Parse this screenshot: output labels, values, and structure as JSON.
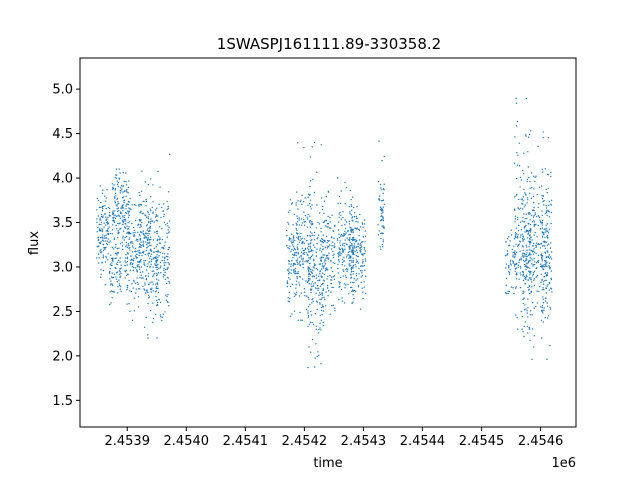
{
  "chart_data": {
    "type": "scatter",
    "title": "1SWASPJ161111.89-330358.2",
    "xlabel": "time",
    "ylabel": "flux",
    "x_offset_label": "1e6",
    "xlim": [
      2.45382,
      2.45466
    ],
    "ylim": [
      1.2,
      5.35
    ],
    "x_ticks": [
      2.4539,
      2.454,
      2.4541,
      2.4542,
      2.4543,
      2.4544,
      2.4545,
      2.4546
    ],
    "x_tick_labels": [
      "2.4539",
      "2.4540",
      "2.4541",
      "2.4542",
      "2.4543",
      "2.4544",
      "2.4545",
      "2.4546"
    ],
    "y_ticks": [
      1.5,
      2.0,
      2.5,
      3.0,
      3.5,
      4.0,
      4.5,
      5.0
    ],
    "y_tick_labels": [
      "1.5",
      "2.0",
      "2.5",
      "3.0",
      "3.5",
      "4.0",
      "4.5",
      "5.0"
    ],
    "grid": false,
    "marker_color": "#1f77b4",
    "clusters": [
      {
        "t": 2.45386,
        "width": 1.2e-05,
        "center": 3.35,
        "spread": 0.22,
        "min": 2.8,
        "max": 3.95,
        "count": 140
      },
      {
        "t": 2.45388,
        "width": 1e-05,
        "center": 2.95,
        "spread": 0.18,
        "min": 2.5,
        "max": 3.4,
        "count": 70
      },
      {
        "t": 2.45389,
        "width": 1.5e-05,
        "center": 3.6,
        "spread": 0.22,
        "min": 3.1,
        "max": 4.1,
        "count": 180
      },
      {
        "t": 2.45391,
        "width": 1.4e-05,
        "center": 3.1,
        "spread": 0.25,
        "min": 2.4,
        "max": 3.7,
        "count": 160
      },
      {
        "t": 2.45393,
        "width": 1e-05,
        "center": 3.35,
        "spread": 0.3,
        "min": 2.6,
        "max": 4.3,
        "count": 110
      },
      {
        "t": 2.45394,
        "width": 1.2e-05,
        "center": 3.0,
        "spread": 0.3,
        "min": 2.2,
        "max": 4.0,
        "count": 120
      },
      {
        "t": 2.45396,
        "width": 1.2e-05,
        "center": 3.1,
        "spread": 0.35,
        "min": 2.0,
        "max": 4.3,
        "count": 140
      },
      {
        "t": 2.45418,
        "width": 1e-05,
        "center": 3.1,
        "spread": 0.25,
        "min": 2.4,
        "max": 3.8,
        "count": 110
      },
      {
        "t": 2.4542,
        "width": 1.4e-05,
        "center": 3.2,
        "spread": 0.32,
        "min": 2.4,
        "max": 4.4,
        "count": 160
      },
      {
        "t": 2.45422,
        "width": 1.4e-05,
        "center": 2.9,
        "spread": 0.4,
        "min": 1.6,
        "max": 4.8,
        "count": 190
      },
      {
        "t": 2.45424,
        "width": 1.2e-05,
        "center": 3.05,
        "spread": 0.28,
        "min": 2.4,
        "max": 4.0,
        "count": 130
      },
      {
        "t": 2.45427,
        "width": 1.4e-05,
        "center": 3.2,
        "spread": 0.28,
        "min": 2.4,
        "max": 4.0,
        "count": 170
      },
      {
        "t": 2.45429,
        "width": 1.4e-05,
        "center": 3.15,
        "spread": 0.25,
        "min": 2.5,
        "max": 3.9,
        "count": 170
      },
      {
        "t": 2.45433,
        "width": 6e-06,
        "center": 3.6,
        "spread": 0.25,
        "min": 3.2,
        "max": 4.5,
        "count": 60
      },
      {
        "t": 2.45455,
        "width": 1e-05,
        "center": 3.05,
        "spread": 0.2,
        "min": 2.7,
        "max": 3.5,
        "count": 70
      },
      {
        "t": 2.45457,
        "width": 1.4e-05,
        "center": 3.3,
        "spread": 0.4,
        "min": 2.3,
        "max": 4.9,
        "count": 170
      },
      {
        "t": 2.45458,
        "width": 1e-05,
        "center": 3.0,
        "spread": 0.45,
        "min": 1.8,
        "max": 5.1,
        "count": 140
      },
      {
        "t": 2.4546,
        "width": 1.4e-05,
        "center": 3.2,
        "spread": 0.35,
        "min": 2.2,
        "max": 4.8,
        "count": 150
      },
      {
        "t": 2.45461,
        "width": 1e-05,
        "center": 3.2,
        "spread": 0.4,
        "min": 1.8,
        "max": 4.8,
        "count": 120
      }
    ]
  }
}
